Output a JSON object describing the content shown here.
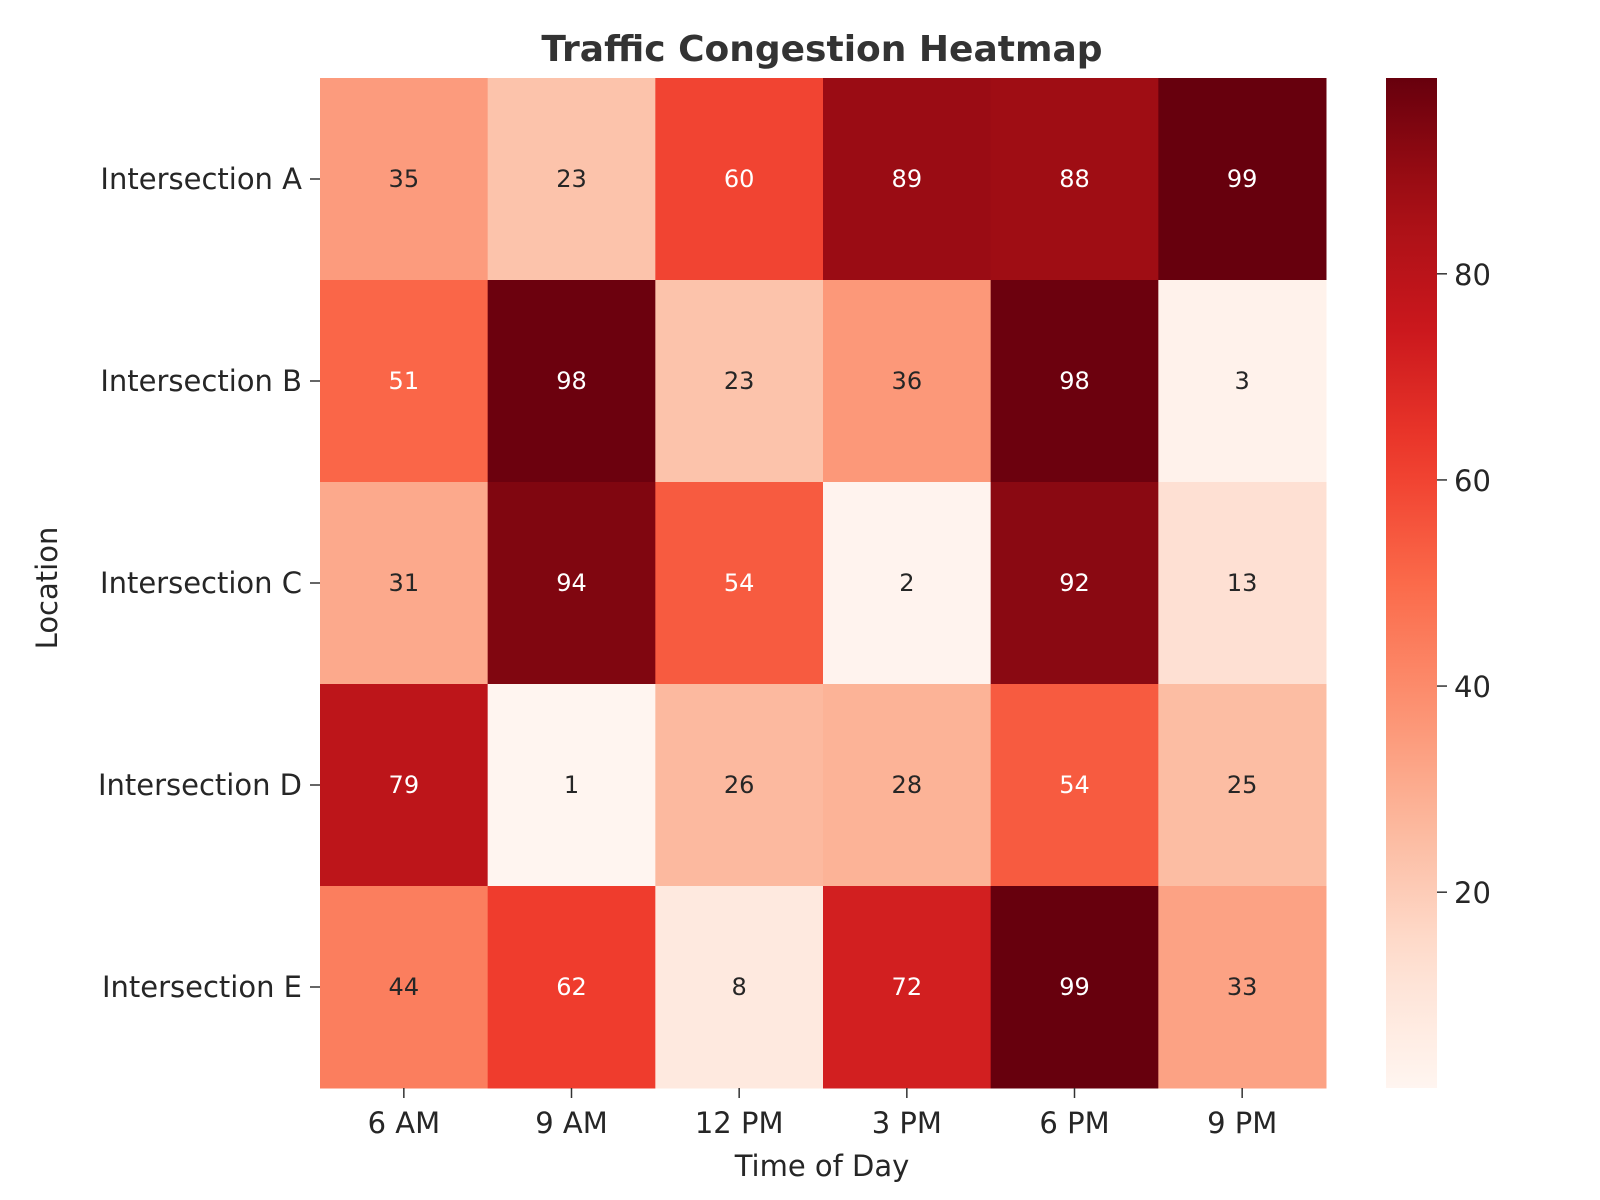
{
  "chart_data": {
    "type": "heatmap",
    "title": "Traffic Congestion Heatmap",
    "xlabel": "Time of Day",
    "ylabel": "Location",
    "x_categories": [
      "6 AM",
      "9 AM",
      "12 PM",
      "3 PM",
      "6 PM",
      "9 PM"
    ],
    "y_categories": [
      "Intersection A",
      "Intersection B",
      "Intersection C",
      "Intersection D",
      "Intersection E"
    ],
    "values": [
      [
        35,
        23,
        60,
        89,
        88,
        99
      ],
      [
        51,
        98,
        23,
        36,
        98,
        3
      ],
      [
        31,
        94,
        54,
        2,
        92,
        13
      ],
      [
        79,
        1,
        26,
        28,
        54,
        25
      ],
      [
        44,
        62,
        8,
        72,
        99,
        33
      ]
    ],
    "colormap": "Reds",
    "color_range": [
      1,
      99
    ],
    "colorbar_ticks": [
      20,
      40,
      60,
      80
    ],
    "annotations": true
  }
}
